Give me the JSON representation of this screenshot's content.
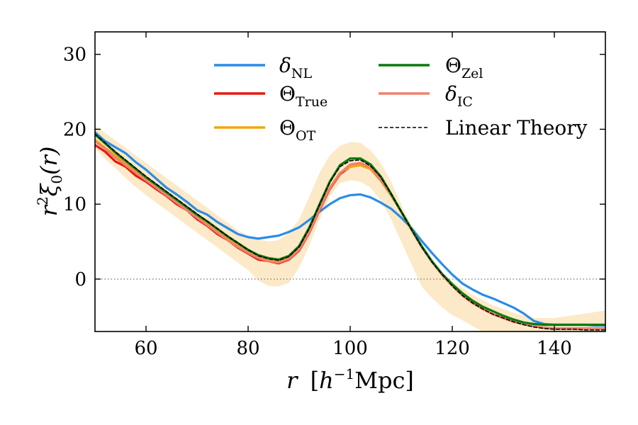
{
  "chart_data": {
    "type": "line",
    "title": "",
    "xlabel": "r [h^-1 Mpc]",
    "xlabel_parts": {
      "var": "r",
      "unit_open": "[",
      "unit_base": "h",
      "unit_exp": "−1",
      "unit_text": "Mpc",
      "unit_close": "]"
    },
    "ylabel": "r^2 ξ0(r)",
    "ylabel_parts": {
      "base": "r",
      "exp": "2",
      "xi": "ξ",
      "sub": "0",
      "arg": "(r)"
    },
    "xlim": [
      50,
      150
    ],
    "ylim": [
      -7,
      33
    ],
    "xticks": [
      60,
      80,
      100,
      120,
      140
    ],
    "xtick_labels": [
      "60",
      "80",
      "100",
      "120",
      "140"
    ],
    "yticks": [
      0,
      10,
      20,
      30
    ],
    "ytick_labels": [
      "0",
      "10",
      "20",
      "30"
    ],
    "grid": false,
    "legend_position": "top",
    "x": [
      50,
      52,
      54,
      56,
      58,
      60,
      62,
      64,
      66,
      68,
      70,
      72,
      74,
      76,
      78,
      80,
      82,
      84,
      86,
      88,
      90,
      92,
      94,
      96,
      98,
      100,
      102,
      104,
      106,
      108,
      110,
      112,
      114,
      116,
      118,
      120,
      122,
      124,
      126,
      128,
      130,
      132,
      134,
      136,
      138,
      140,
      142,
      144,
      146,
      148,
      150
    ],
    "band": {
      "name": "scatter band",
      "color": "#f5a623",
      "lower": [
        17.5,
        16,
        14.8,
        13.5,
        12.3,
        11.2,
        10.2,
        9.2,
        8.2,
        7.2,
        6.2,
        5.2,
        4.2,
        3.2,
        2.2,
        1.2,
        -0.2,
        -0.9,
        -1.0,
        -0.5,
        1.5,
        4.5,
        8,
        11,
        12.8,
        13.2,
        13.0,
        12.2,
        10.5,
        8,
        5,
        2,
        -1,
        -2.5,
        -3.8,
        -4.8,
        -5.5,
        -6.3,
        -7,
        -7,
        -7,
        -7,
        -7,
        -7,
        -7,
        -7,
        -7,
        -7,
        -7,
        -7,
        -7
      ],
      "upper": [
        20.5,
        19.5,
        18.5,
        17.5,
        16.5,
        15.5,
        14.5,
        13.5,
        12.5,
        11.5,
        10.5,
        9.5,
        8.5,
        7.5,
        6.5,
        5.8,
        5.3,
        5.0,
        5.2,
        6.2,
        8,
        11,
        14.2,
        16.5,
        17.8,
        18.3,
        18.2,
        17.2,
        15.5,
        13,
        10,
        7,
        4,
        2,
        0.5,
        -0.3,
        -1.2,
        -2.1,
        -2.8,
        -3.5,
        -4.0,
        -4.5,
        -4.9,
        -5.2,
        -5.2,
        -5.2,
        -5.0,
        -4.8,
        -4.6,
        -4.4,
        -4.2
      ]
    },
    "series": [
      {
        "name": "δ_NL",
        "color": "#2a8ce8",
        "legend_base": "δ",
        "legend_sub": "NL",
        "values": [
          19.6,
          18.4,
          17.6,
          16.8,
          15.6,
          14.6,
          13.4,
          12.2,
          11.3,
          10.3,
          9.2,
          8.6,
          7.6,
          6.8,
          6.0,
          5.6,
          5.4,
          5.6,
          5.8,
          6.3,
          6.9,
          7.9,
          9.0,
          10.0,
          10.8,
          11.2,
          11.3,
          10.9,
          10.2,
          9.4,
          8.2,
          6.8,
          5.1,
          3.5,
          2.0,
          0.6,
          -0.6,
          -1.4,
          -2.1,
          -2.6,
          -3.2,
          -3.8,
          -4.6,
          -5.6,
          -6.0,
          -6.1,
          -6.1,
          -6.1,
          -6.1,
          -6.2,
          -6.2
        ]
      },
      {
        "name": "Θ_True",
        "color": "#e8190f",
        "legend_base": "Θ",
        "legend_sub": "True",
        "values": [
          17.9,
          17.0,
          15.7,
          15.0,
          13.8,
          13.0,
          12.0,
          11.1,
          10.0,
          9.2,
          8.0,
          7.1,
          6.0,
          5.2,
          4.2,
          3.4,
          2.6,
          2.4,
          2.1,
          2.6,
          3.8,
          6.2,
          9.2,
          12.0,
          14.0,
          15.0,
          15.2,
          14.7,
          13.2,
          11.2,
          9.0,
          6.6,
          4.3,
          2.3,
          0.6,
          -0.9,
          -2.2,
          -3.2,
          -4.0,
          -4.7,
          -5.2,
          -5.7,
          -6.0,
          -6.3,
          -6.5,
          -6.6,
          -6.6,
          -6.6,
          -6.6,
          -6.6,
          -6.6
        ]
      },
      {
        "name": "Θ_OT",
        "color": "#f5a60a",
        "legend_base": "Θ",
        "legend_sub": "OT",
        "values": [
          18.6,
          17.5,
          16.5,
          15.5,
          14.4,
          13.4,
          12.4,
          11.4,
          10.4,
          9.4,
          8.4,
          7.4,
          6.4,
          5.4,
          4.5,
          3.6,
          2.9,
          2.5,
          2.3,
          2.8,
          4.0,
          6.4,
          9.4,
          12.2,
          14.2,
          15.0,
          15.2,
          14.7,
          13.3,
          11.2,
          9.0,
          6.6,
          4.3,
          2.3,
          0.6,
          -0.9,
          -2.2,
          -3.2,
          -4.0,
          -4.7,
          -5.2,
          -5.7,
          -6.0,
          -6.3,
          -6.5,
          -6.6,
          -6.6,
          -6.6,
          -6.6,
          -6.6,
          -6.6
        ]
      },
      {
        "name": "Θ_Zel",
        "color": "#0a7a0a",
        "legend_base": "Θ",
        "legend_sub": "Zel",
        "values": [
          19.3,
          18.1,
          16.9,
          15.8,
          14.7,
          13.6,
          12.6,
          11.6,
          10.6,
          9.6,
          8.6,
          7.7,
          6.7,
          5.7,
          4.8,
          3.9,
          3.2,
          2.8,
          2.6,
          3.1,
          4.4,
          6.9,
          10.0,
          13.0,
          15.2,
          16.1,
          16.1,
          15.3,
          13.7,
          11.4,
          9.0,
          6.7,
          4.4,
          2.4,
          0.7,
          -0.7,
          -1.9,
          -2.9,
          -3.7,
          -4.3,
          -4.9,
          -5.4,
          -5.8,
          -6.0,
          -6.1,
          -6.1,
          -6.1,
          -6.1,
          -6.1,
          -6.1,
          -6.1
        ]
      },
      {
        "name": "δ_IC",
        "color": "#f08070",
        "legend_base": "δ",
        "legend_sub": "IC",
        "values": [
          18.4,
          17.4,
          16.2,
          15.2,
          14.2,
          13.2,
          12.2,
          11.2,
          10.2,
          9.2,
          8.2,
          7.2,
          6.2,
          5.2,
          4.3,
          3.5,
          2.8,
          2.4,
          2.2,
          2.7,
          3.9,
          6.3,
          9.3,
          12.1,
          14.1,
          15.3,
          15.5,
          14.9,
          13.4,
          11.3,
          9.0,
          6.6,
          4.3,
          2.3,
          0.6,
          -0.9,
          -2.2,
          -3.2,
          -4.0,
          -4.7,
          -5.2,
          -5.7,
          -6.0,
          -6.3,
          -6.5,
          -6.6,
          -6.6,
          -6.6,
          -6.6,
          -6.6,
          -6.6
        ]
      },
      {
        "name": "Linear Theory",
        "color": "#000000",
        "dashed": true,
        "legend_text": "Linear Theory",
        "values": [
          19.4,
          18.2,
          17.0,
          15.9,
          14.8,
          13.7,
          12.7,
          11.7,
          10.7,
          9.7,
          8.7,
          7.7,
          6.7,
          5.7,
          4.8,
          3.9,
          3.1,
          2.7,
          2.5,
          3.0,
          4.3,
          6.8,
          9.9,
          12.9,
          15.0,
          15.8,
          15.9,
          15.1,
          13.6,
          11.4,
          9.0,
          6.6,
          4.3,
          2.3,
          0.6,
          -0.9,
          -2.2,
          -3.2,
          -4.0,
          -4.7,
          -5.2,
          -5.7,
          -6.1,
          -6.4,
          -6.6,
          -6.7,
          -6.7,
          -6.7,
          -6.8,
          -6.8,
          -6.8
        ]
      }
    ],
    "reference_line": {
      "y": 0,
      "style": "dotted",
      "color": "#888888"
    }
  }
}
